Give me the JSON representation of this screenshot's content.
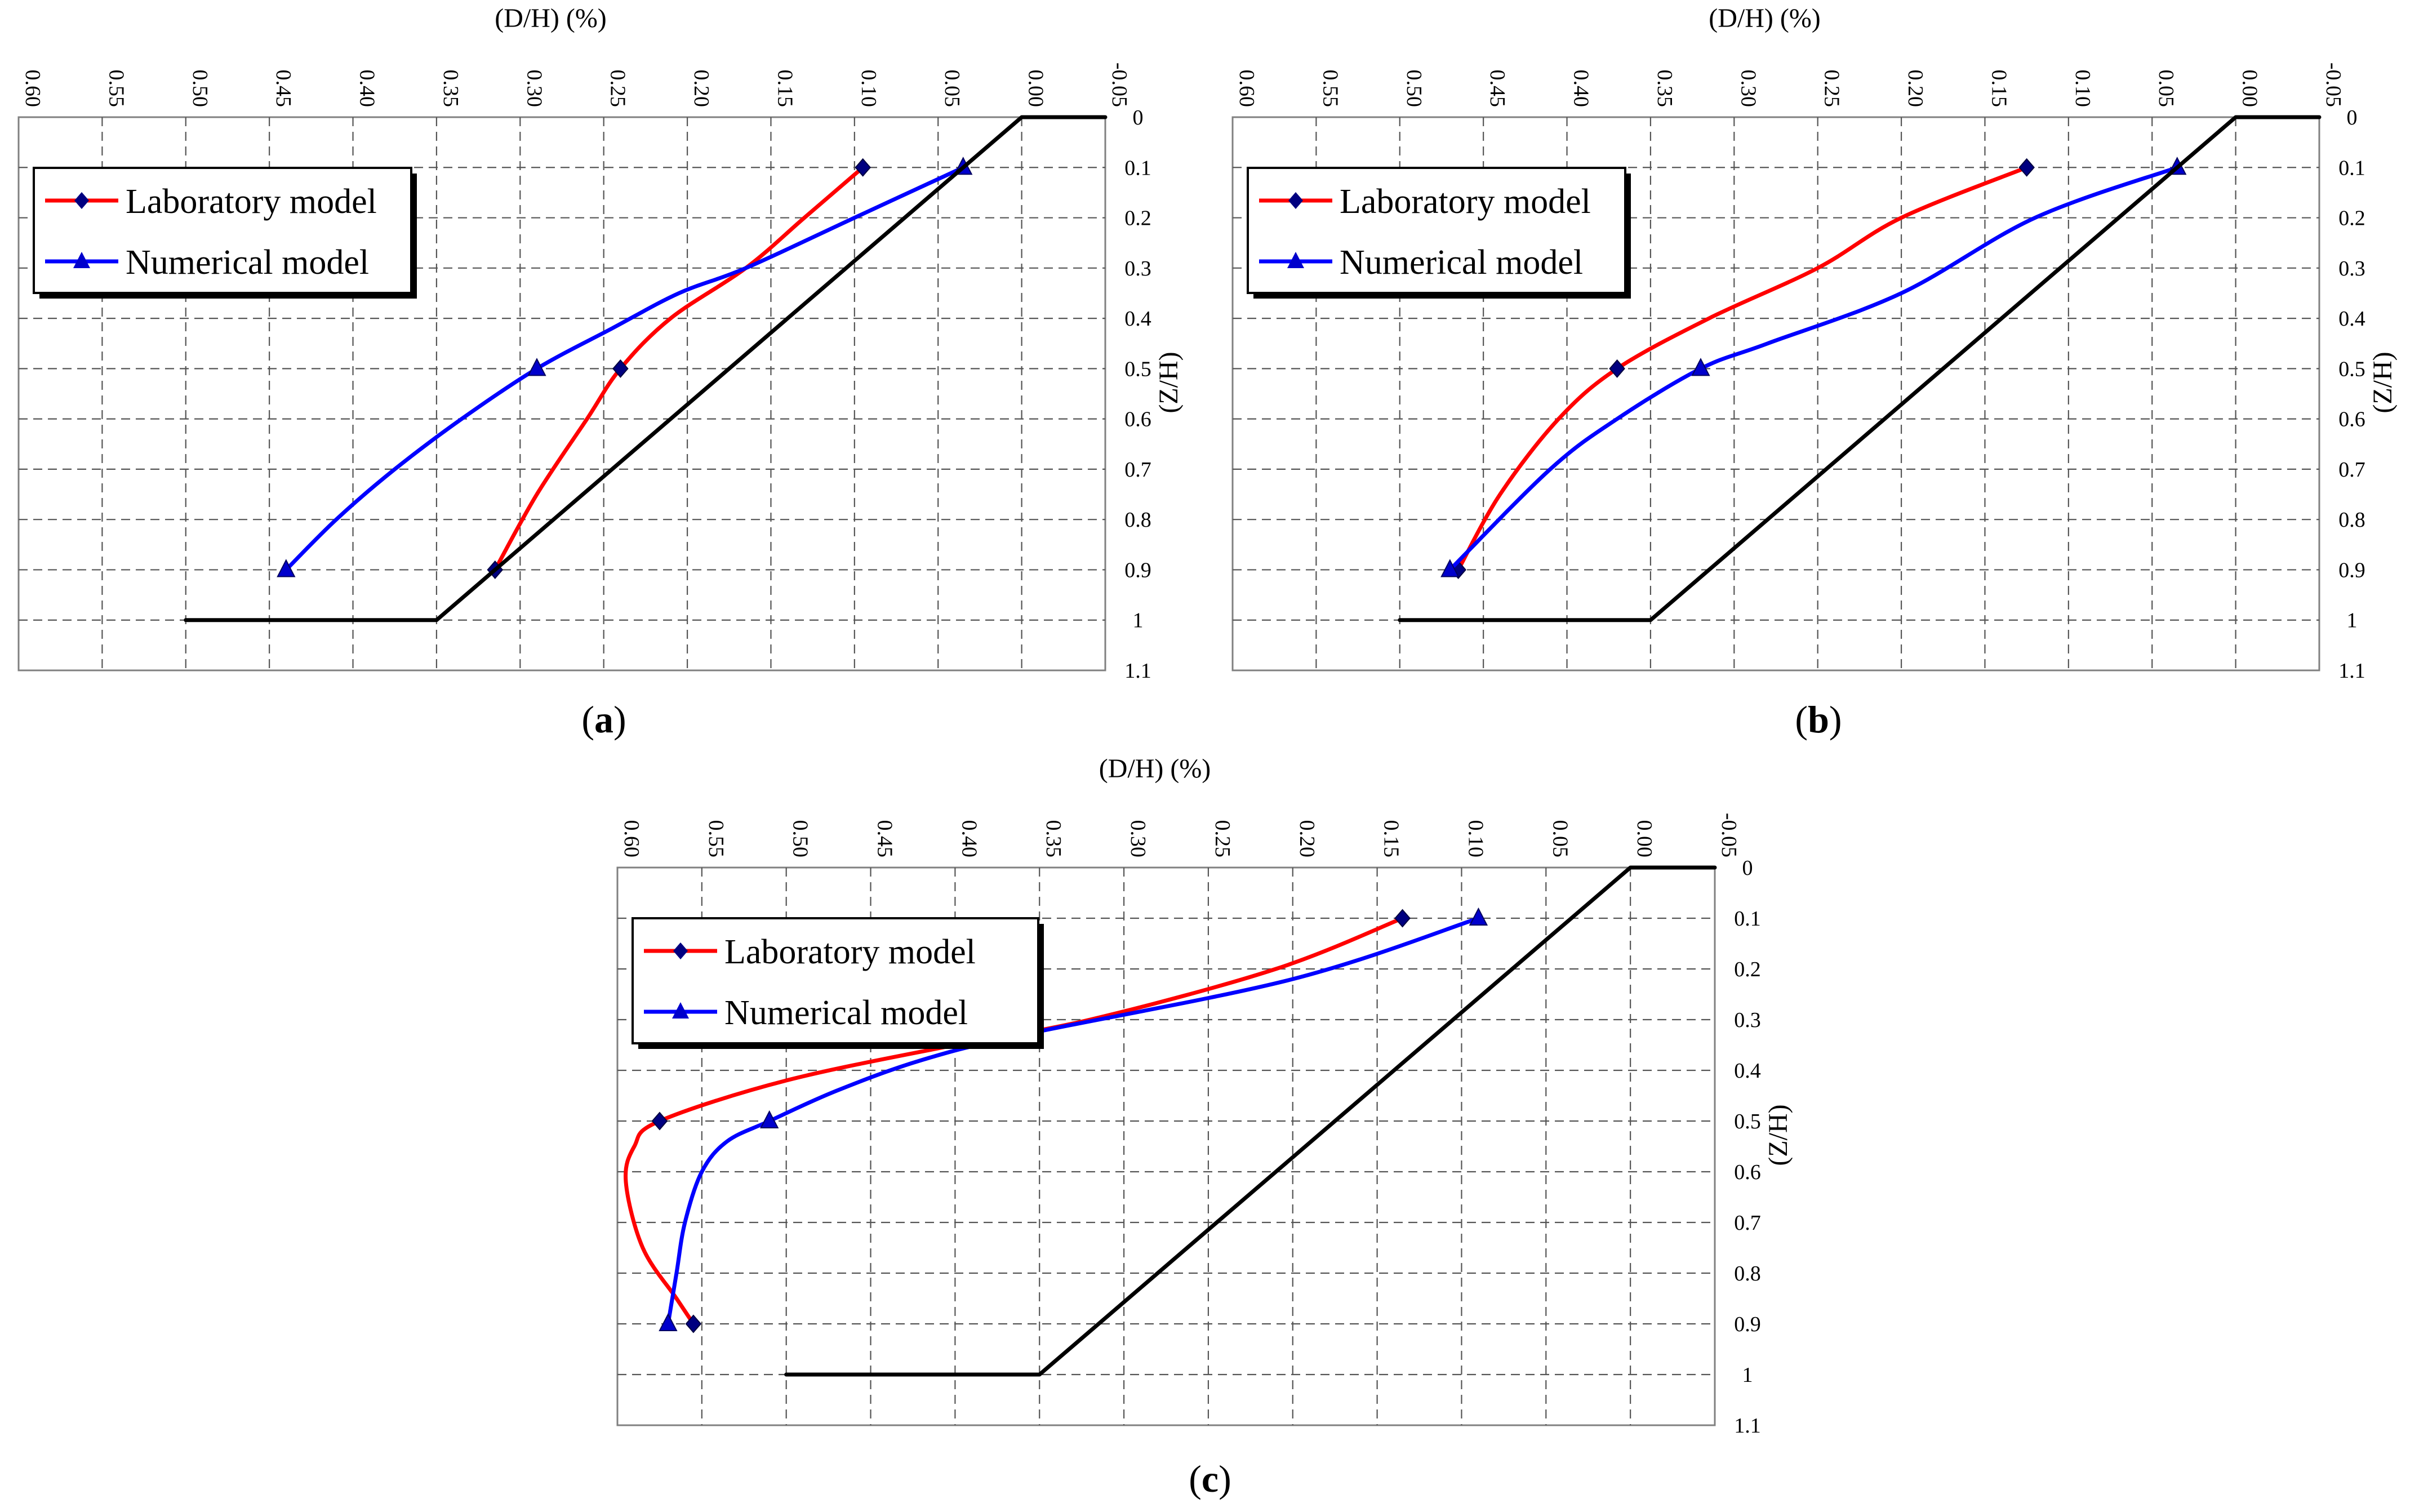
{
  "figure": {
    "panels_order": [
      "(a)",
      "(b)",
      "(c)"
    ]
  },
  "colors": {
    "laboratory": "#ff0000",
    "numerical": "#0000ff",
    "profile": "#000000",
    "grid": "#555555",
    "plot_border": "#808080"
  },
  "chart_data": [
    {
      "type": "line",
      "panel": "a",
      "caption_open": "(",
      "caption_letter": "a",
      "caption_close": ")",
      "xlabel": "(D/H) (%)",
      "ylabel": "(Z/H)",
      "x_reversed": true,
      "y_reversed": true,
      "xlim": [
        0.6,
        -0.05
      ],
      "ylim": [
        0,
        1.1
      ],
      "xticks": [
        "0.60",
        "0.55",
        "0.50",
        "0.45",
        "0.40",
        "0.35",
        "0.30",
        "0.25",
        "0.20",
        "0.15",
        "0.10",
        "0.05",
        "0.00",
        "-0.05"
      ],
      "yticks": [
        "0",
        "0.1",
        "0.2",
        "0.3",
        "0.4",
        "0.5",
        "0.6",
        "0.7",
        "0.8",
        "0.9",
        "1",
        "1.1"
      ],
      "grid": true,
      "legend_position": "top-left",
      "series": [
        {
          "name": "Laboratory model",
          "color": "red",
          "marker": "diamond",
          "x": [
            0.095,
            0.13,
            0.165,
            0.21,
            0.24,
            0.26,
            0.29,
            0.315
          ],
          "y": [
            0.1,
            0.2,
            0.3,
            0.4,
            0.5,
            0.6,
            0.75,
            0.9
          ],
          "markers_at": [
            0,
            4,
            7
          ]
        },
        {
          "name": "Numerical model",
          "color": "blue",
          "marker": "triangle",
          "x": [
            0.035,
            0.1,
            0.165,
            0.205,
            0.245,
            0.29,
            0.335,
            0.375,
            0.41,
            0.44
          ],
          "y": [
            0.1,
            0.2,
            0.3,
            0.35,
            0.42,
            0.5,
            0.6,
            0.7,
            0.8,
            0.9
          ],
          "markers_at": [
            0,
            5,
            9
          ]
        },
        {
          "name": "profile",
          "color": "black",
          "marker": "none",
          "x": [
            -0.05,
            0.0,
            0.35,
            0.5
          ],
          "y": [
            0,
            0,
            1,
            1
          ]
        }
      ]
    },
    {
      "type": "line",
      "panel": "b",
      "caption_open": "(",
      "caption_letter": "b",
      "caption_close": ")",
      "xlabel": "(D/H) (%)",
      "ylabel": "(Z/H)",
      "x_reversed": true,
      "y_reversed": true,
      "xlim": [
        0.6,
        -0.05
      ],
      "ylim": [
        0,
        1.1
      ],
      "xticks": [
        "0.60",
        "0.55",
        "0.50",
        "0.45",
        "0.40",
        "0.35",
        "0.30",
        "0.25",
        "0.20",
        "0.15",
        "0.10",
        "0.05",
        "0.00",
        "-0.05"
      ],
      "yticks": [
        "0",
        "0.1",
        "0.2",
        "0.3",
        "0.4",
        "0.5",
        "0.6",
        "0.7",
        "0.8",
        "0.9",
        "1",
        "1.1"
      ],
      "grid": true,
      "legend_position": "top-left",
      "series": [
        {
          "name": "Laboratory model",
          "color": "red",
          "marker": "diamond",
          "x": [
            0.125,
            0.2,
            0.25,
            0.315,
            0.37,
            0.405,
            0.44,
            0.465
          ],
          "y": [
            0.1,
            0.2,
            0.3,
            0.4,
            0.5,
            0.6,
            0.75,
            0.9
          ],
          "markers_at": [
            0,
            4,
            7
          ]
        },
        {
          "name": "Numerical model",
          "color": "blue",
          "marker": "triangle",
          "x": [
            0.035,
            0.12,
            0.2,
            0.28,
            0.32,
            0.37,
            0.41,
            0.47
          ],
          "y": [
            0.1,
            0.2,
            0.35,
            0.45,
            0.5,
            0.6,
            0.7,
            0.9
          ],
          "markers_at": [
            0,
            4,
            7
          ]
        },
        {
          "name": "profile",
          "color": "black",
          "marker": "none",
          "x": [
            -0.05,
            0.0,
            0.35,
            0.5
          ],
          "y": [
            0,
            0,
            1,
            1
          ]
        }
      ]
    },
    {
      "type": "line",
      "panel": "c",
      "caption_open": "(",
      "caption_letter": "c",
      "caption_close": ")",
      "xlabel": "(D/H) (%)",
      "ylabel": "(Z/H)",
      "x_reversed": true,
      "y_reversed": true,
      "xlim": [
        0.6,
        -0.05
      ],
      "ylim": [
        0,
        1.1
      ],
      "xticks": [
        "0.60",
        "0.55",
        "0.50",
        "0.45",
        "0.40",
        "0.35",
        "0.30",
        "0.25",
        "0.20",
        "0.15",
        "0.10",
        "0.05",
        "0.00",
        "-0.05"
      ],
      "yticks": [
        "0",
        "0.1",
        "0.2",
        "0.3",
        "0.4",
        "0.5",
        "0.6",
        "0.7",
        "0.8",
        "0.9",
        "1",
        "1.1"
      ],
      "grid": true,
      "legend_position": "top-left",
      "series": [
        {
          "name": "Laboratory model",
          "color": "red",
          "marker": "diamond",
          "x": [
            0.135,
            0.21,
            0.32,
            0.4,
            0.5,
            0.575,
            0.59,
            0.595,
            0.585,
            0.565,
            0.555
          ],
          "y": [
            0.1,
            0.2,
            0.3,
            0.35,
            0.42,
            0.5,
            0.55,
            0.62,
            0.75,
            0.85,
            0.9
          ],
          "markers_at": [
            0,
            5,
            10
          ]
        },
        {
          "name": "Numerical model",
          "color": "blue",
          "marker": "triangle",
          "x": [
            0.09,
            0.2,
            0.36,
            0.42,
            0.47,
            0.51,
            0.535,
            0.55,
            0.56,
            0.565,
            0.57
          ],
          "y": [
            0.1,
            0.22,
            0.33,
            0.38,
            0.44,
            0.5,
            0.54,
            0.6,
            0.7,
            0.8,
            0.9
          ],
          "markers_at": [
            0,
            5,
            10
          ]
        },
        {
          "name": "profile",
          "color": "black",
          "marker": "none",
          "x": [
            -0.05,
            0.0,
            0.35,
            0.5
          ],
          "y": [
            0,
            0,
            1,
            1
          ]
        }
      ]
    }
  ]
}
